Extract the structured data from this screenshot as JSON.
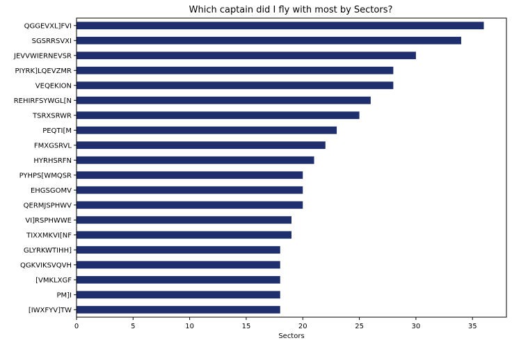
{
  "chart_data": {
    "type": "bar",
    "orientation": "horizontal",
    "title": "Which captain did I fly with most by Sectors?",
    "xlabel": "Sectors",
    "ylabel": "",
    "xlim": [
      0,
      38
    ],
    "xticks": [
      0,
      5,
      10,
      15,
      20,
      25,
      30,
      35
    ],
    "grid": false,
    "legend": "none",
    "bar_color": "#1f2f6e",
    "categories": [
      "QGGEVXL]FVI",
      "SGSRRSVXI",
      "JEVVWIERNEVSR",
      "PIYRK]LQEVZMR",
      "VEQEKION",
      "REHIRFSYWGL[N",
      "TSRXSRWR",
      "PEQTI[M",
      "FMXGSRVL",
      "HYRHSRFN",
      "PYHPS[WMQSR",
      "EHGSGOMV",
      "QERMJSPHWV",
      "VI]RSPHWWE",
      "TIXXMKVI[NF",
      "GLYRKWTIHH]",
      "QGKVIKSVQVH",
      "[VMKLXGF",
      "PM]I",
      "[IWXFYV]TW"
    ],
    "values": [
      36,
      34,
      30,
      28,
      28,
      26,
      25,
      23,
      22,
      21,
      20,
      20,
      20,
      19,
      19,
      18,
      18,
      18,
      18,
      18
    ]
  }
}
